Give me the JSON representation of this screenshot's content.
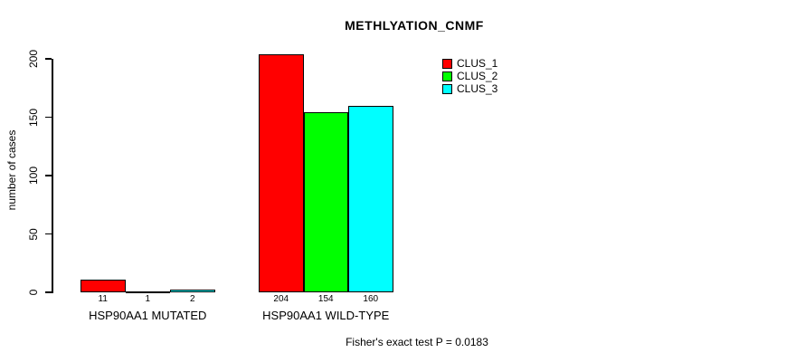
{
  "chart_data": {
    "type": "bar",
    "title": "METHLYATION_CNMF",
    "ylabel": "number of cases",
    "xlabel": "",
    "ylim": [
      0,
      200
    ],
    "yticks": [
      0,
      50,
      100,
      150,
      200
    ],
    "grid": false,
    "legend_position": "top-right",
    "categories": [
      "HSP90AA1 MUTATED",
      "HSP90AA1 WILD-TYPE"
    ],
    "series": [
      {
        "name": "CLUS_1",
        "color": "#ff0000",
        "values": [
          11,
          204
        ]
      },
      {
        "name": "CLUS_2",
        "color": "#00ff00",
        "values": [
          1,
          154
        ]
      },
      {
        "name": "CLUS_3",
        "color": "#00ffff",
        "values": [
          2,
          160
        ]
      }
    ],
    "annotation": "Fisher's exact test P = 0.0183"
  }
}
